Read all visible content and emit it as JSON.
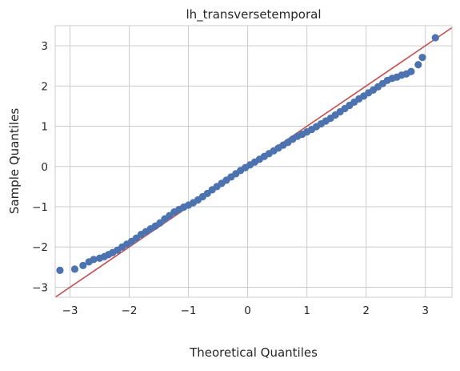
{
  "chart_data": {
    "type": "scatter",
    "title": "lh_transversetemporal",
    "xlabel": "Theoretical Quantiles",
    "ylabel": "Sample Quantiles",
    "xlim": [
      -3.25,
      3.45
    ],
    "ylim": [
      -3.25,
      3.5
    ],
    "xticks": [
      -3,
      -2,
      -1,
      0,
      1,
      2,
      3
    ],
    "yticks": [
      -3,
      -2,
      -1,
      0,
      1,
      2,
      3
    ],
    "xtick_labels": [
      "−3",
      "−2",
      "−1",
      "0",
      "1",
      "2",
      "3"
    ],
    "ytick_labels": [
      "−3",
      "−2",
      "−1",
      "0",
      "1",
      "2",
      "3"
    ],
    "grid": true,
    "point_color": "#4c72b0",
    "reference_line": {
      "slope": 1,
      "intercept": 0,
      "color": "#c44e52"
    },
    "points": [
      {
        "x": -3.17,
        "y": -2.58
      },
      {
        "x": -2.92,
        "y": -2.55
      },
      {
        "x": -2.78,
        "y": -2.46
      },
      {
        "x": -2.68,
        "y": -2.37
      },
      {
        "x": -2.6,
        "y": -2.31
      },
      {
        "x": -2.5,
        "y": -2.28
      },
      {
        "x": -2.42,
        "y": -2.24
      },
      {
        "x": -2.35,
        "y": -2.19
      },
      {
        "x": -2.28,
        "y": -2.14
      },
      {
        "x": -2.2,
        "y": -2.08
      },
      {
        "x": -2.12,
        "y": -2.0
      },
      {
        "x": -2.04,
        "y": -1.93
      },
      {
        "x": -1.96,
        "y": -1.86
      },
      {
        "x": -1.88,
        "y": -1.78
      },
      {
        "x": -1.8,
        "y": -1.69
      },
      {
        "x": -1.72,
        "y": -1.62
      },
      {
        "x": -1.64,
        "y": -1.55
      },
      {
        "x": -1.56,
        "y": -1.48
      },
      {
        "x": -1.48,
        "y": -1.4
      },
      {
        "x": -1.4,
        "y": -1.3
      },
      {
        "x": -1.32,
        "y": -1.22
      },
      {
        "x": -1.24,
        "y": -1.13
      },
      {
        "x": -1.16,
        "y": -1.07
      },
      {
        "x": -1.08,
        "y": -1.01
      },
      {
        "x": -1.0,
        "y": -0.96
      },
      {
        "x": -0.92,
        "y": -0.9
      },
      {
        "x": -0.84,
        "y": -0.83
      },
      {
        "x": -0.76,
        "y": -0.75
      },
      {
        "x": -0.68,
        "y": -0.67
      },
      {
        "x": -0.6,
        "y": -0.58
      },
      {
        "x": -0.52,
        "y": -0.5
      },
      {
        "x": -0.44,
        "y": -0.42
      },
      {
        "x": -0.36,
        "y": -0.34
      },
      {
        "x": -0.28,
        "y": -0.26
      },
      {
        "x": -0.2,
        "y": -0.18
      },
      {
        "x": -0.12,
        "y": -0.1
      },
      {
        "x": -0.04,
        "y": -0.03
      },
      {
        "x": 0.04,
        "y": 0.04
      },
      {
        "x": 0.12,
        "y": 0.11
      },
      {
        "x": 0.2,
        "y": 0.18
      },
      {
        "x": 0.28,
        "y": 0.25
      },
      {
        "x": 0.36,
        "y": 0.32
      },
      {
        "x": 0.44,
        "y": 0.39
      },
      {
        "x": 0.52,
        "y": 0.46
      },
      {
        "x": 0.6,
        "y": 0.53
      },
      {
        "x": 0.68,
        "y": 0.6
      },
      {
        "x": 0.76,
        "y": 0.68
      },
      {
        "x": 0.84,
        "y": 0.75
      },
      {
        "x": 0.92,
        "y": 0.8
      },
      {
        "x": 1.0,
        "y": 0.86
      },
      {
        "x": 1.08,
        "y": 0.92
      },
      {
        "x": 1.16,
        "y": 0.99
      },
      {
        "x": 1.24,
        "y": 1.06
      },
      {
        "x": 1.32,
        "y": 1.13
      },
      {
        "x": 1.4,
        "y": 1.2
      },
      {
        "x": 1.48,
        "y": 1.28
      },
      {
        "x": 1.56,
        "y": 1.36
      },
      {
        "x": 1.64,
        "y": 1.44
      },
      {
        "x": 1.72,
        "y": 1.52
      },
      {
        "x": 1.8,
        "y": 1.6
      },
      {
        "x": 1.88,
        "y": 1.68
      },
      {
        "x": 1.96,
        "y": 1.75
      },
      {
        "x": 2.04,
        "y": 1.83
      },
      {
        "x": 2.12,
        "y": 1.9
      },
      {
        "x": 2.2,
        "y": 1.98
      },
      {
        "x": 2.28,
        "y": 2.06
      },
      {
        "x": 2.36,
        "y": 2.14
      },
      {
        "x": 2.44,
        "y": 2.19
      },
      {
        "x": 2.52,
        "y": 2.22
      },
      {
        "x": 2.6,
        "y": 2.27
      },
      {
        "x": 2.68,
        "y": 2.3
      },
      {
        "x": 2.76,
        "y": 2.36
      },
      {
        "x": 2.88,
        "y": 2.53
      },
      {
        "x": 2.95,
        "y": 2.71
      },
      {
        "x": 3.17,
        "y": 3.2
      }
    ]
  }
}
